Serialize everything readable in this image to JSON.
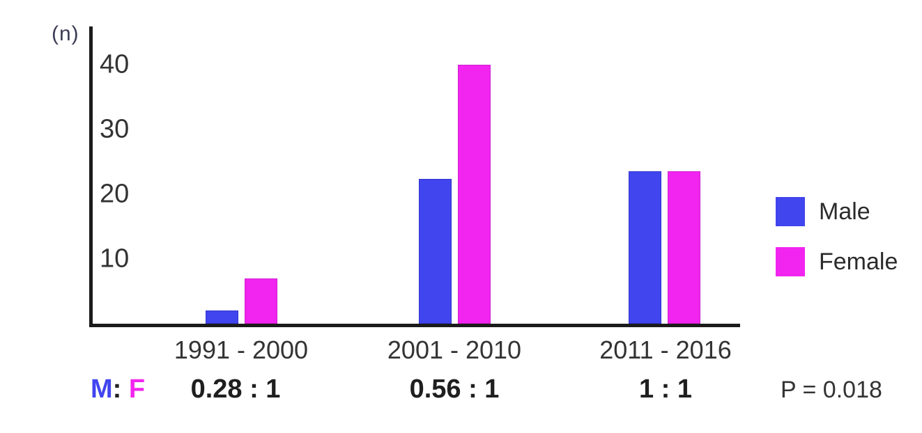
{
  "chart_data": {
    "type": "bar",
    "title": "",
    "xlabel": "",
    "ylabel": "(n)",
    "yticks": [
      10,
      20,
      30,
      40
    ],
    "ylim": [
      0,
      43
    ],
    "grid": false,
    "legend_position": "right",
    "categories": [
      "1991 - 2000",
      "2001 - 2010",
      "2011 - 2016"
    ],
    "series": [
      {
        "name": "Male",
        "color": "#4145ee",
        "edge_color": "#3134cf",
        "values": [
          2,
          22.4,
          23.5
        ]
      },
      {
        "name": "Female",
        "color": "#f224ef",
        "edge_color": "#d01ed0",
        "values": [
          7,
          40,
          23.5
        ]
      }
    ]
  },
  "annotations": {
    "ratio_m": "M",
    "ratio_sep": ":",
    "ratio_f": "F",
    "ratios": [
      "0.28 : 1",
      "0.56 : 1",
      "1 : 1"
    ],
    "p_value": "P = 0.018"
  }
}
